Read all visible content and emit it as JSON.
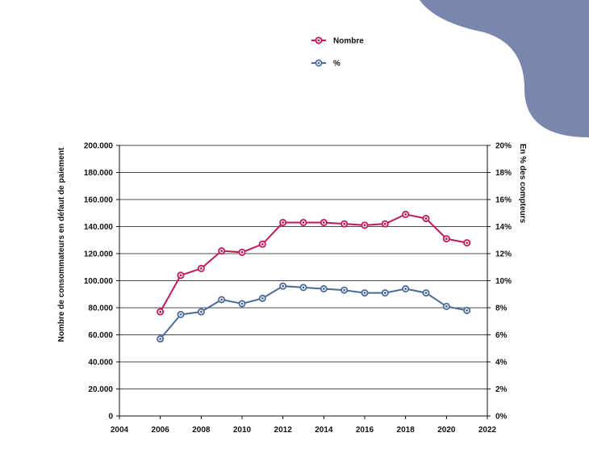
{
  "colors": {
    "nombre": "#c2185b",
    "percent": "#4a6a9a",
    "corner_shape": "#7a87ad",
    "grid": "#111111"
  },
  "legend": [
    "Nombre",
    "%"
  ],
  "chart_data": {
    "type": "line",
    "x": [
      2006,
      2007,
      2008,
      2009,
      2010,
      2011,
      2012,
      2013,
      2014,
      2015,
      2016,
      2017,
      2018,
      2019,
      2020,
      2021
    ],
    "series": [
      {
        "name": "Nombre",
        "axis": "left",
        "values": [
          77000,
          104000,
          109000,
          122000,
          121000,
          127000,
          143000,
          143000,
          143000,
          142000,
          141000,
          142000,
          149000,
          146000,
          131000,
          128000
        ]
      },
      {
        "name": "%",
        "axis": "right",
        "values": [
          5.7,
          7.5,
          7.7,
          8.6,
          8.3,
          8.7,
          9.6,
          9.5,
          9.4,
          9.3,
          9.1,
          9.1,
          9.4,
          9.1,
          8.1,
          7.8
        ]
      }
    ],
    "xlim": [
      2004,
      2022
    ],
    "x_ticks": [
      "2004",
      "2006",
      "2008",
      "2010",
      "2012",
      "2014",
      "2016",
      "2018",
      "2020",
      "2022"
    ],
    "ylim_left": [
      0,
      200000
    ],
    "y_ticks_left": [
      "0",
      "20.000",
      "40.000",
      "60.000",
      "80.000",
      "100.000",
      "120.000",
      "140.000",
      "160.000",
      "180.000",
      "200.000"
    ],
    "ylim_right": [
      0,
      20
    ],
    "y_ticks_right": [
      "0%",
      "2%",
      "4%",
      "6%",
      "8%",
      "10%",
      "12%",
      "14%",
      "16%",
      "18%",
      "20%"
    ],
    "ylabel_left": "Nombre de consommateurs en défaut de paiement",
    "ylabel_right": "En % des compteurs",
    "xlabel": "",
    "grid": "horizontal",
    "legend_position": "top-center"
  }
}
